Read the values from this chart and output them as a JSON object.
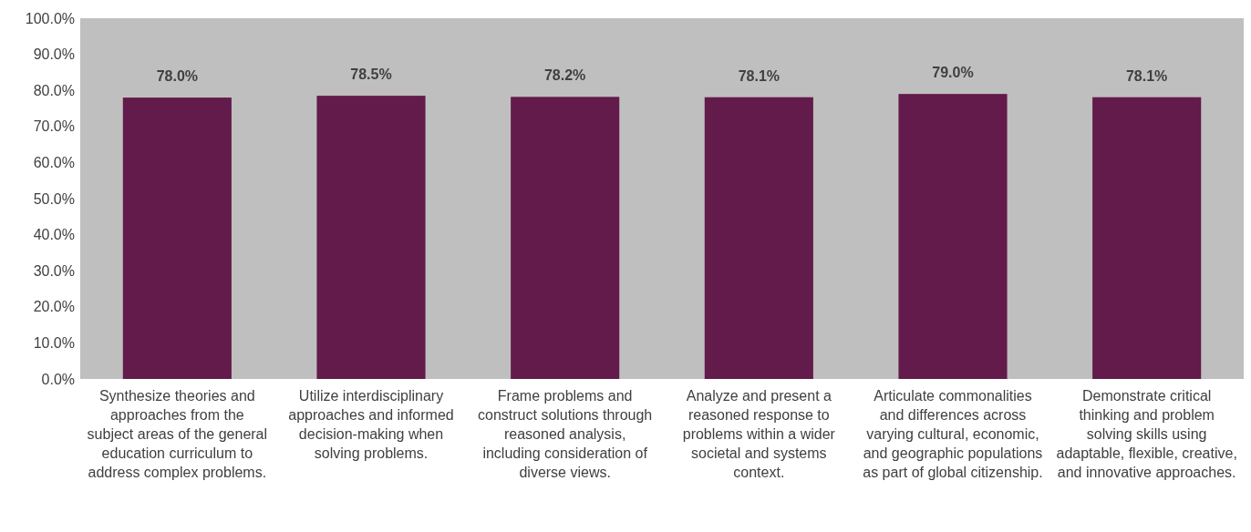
{
  "chart_data": {
    "type": "bar",
    "categories": [
      "Synthesize theories and approaches from the subject areas of the general education curriculum to address complex problems.",
      "Utilize interdisciplinary approaches and informed decision-making when solving problems.",
      "Frame problems and construct solutions through reasoned analysis, including consideration of diverse views.",
      "Analyze and present a reasoned response to problems within a wider societal and systems context.",
      "Articulate commonalities and differences across varying cultural, economic, and geographic populations as part of global citizenship.",
      "Demonstrate critical thinking and problem solving skills using adaptable, flexible, creative, and innovative approaches."
    ],
    "values": [
      78.0,
      78.5,
      78.2,
      78.1,
      79.0,
      78.1
    ],
    "value_labels": [
      "78.0%",
      "78.5%",
      "78.2%",
      "78.1%",
      "79.0%",
      "78.1%"
    ],
    "color": "#621b4a",
    "ylim": [
      0,
      100
    ],
    "yticks": [
      {
        "value": 0,
        "label": "0.0%"
      },
      {
        "value": 10,
        "label": "10.0%"
      },
      {
        "value": 20,
        "label": "20.0%"
      },
      {
        "value": 30,
        "label": "30.0%"
      },
      {
        "value": 40,
        "label": "40.0%"
      },
      {
        "value": 50,
        "label": "50.0%"
      },
      {
        "value": 60,
        "label": "60.0%"
      },
      {
        "value": 70,
        "label": "70.0%"
      },
      {
        "value": 80,
        "label": "80.0%"
      },
      {
        "value": 90,
        "label": "90.0%"
      },
      {
        "value": 100,
        "label": "100.0%"
      }
    ],
    "grid": false
  }
}
